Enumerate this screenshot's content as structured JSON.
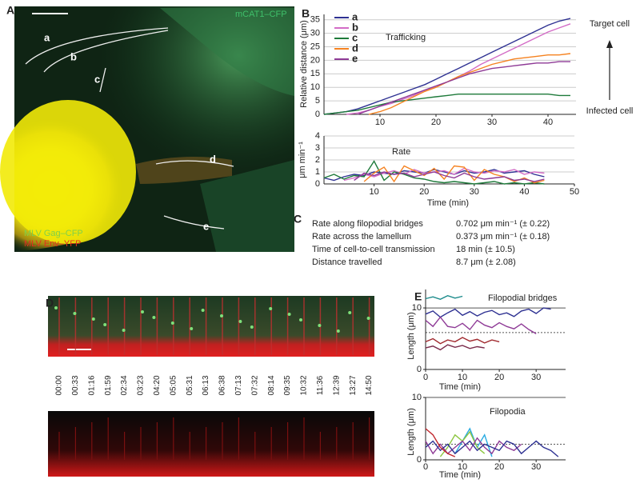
{
  "panel_letters": [
    "A",
    "B",
    "C",
    "D",
    "E"
  ],
  "panel_a": {
    "channel_label": "mCAT1–CFP",
    "track_labels": [
      "a",
      "b",
      "c",
      "d",
      "e"
    ],
    "legend": [
      "MLV Gag–CFP",
      "MLV Env–YFP"
    ]
  },
  "panel_c": {
    "rows": [
      [
        "Rate along filopodial bridges",
        "0.702 μm min⁻¹ (± 0.22)"
      ],
      [
        "Rate across the lamellum",
        "0.373 μm min⁻¹ (± 0.18)"
      ],
      [
        "Time of cell-to-cell transmission",
        "18 min (± 10.5)"
      ],
      [
        "Distance travelled",
        "8.7 μm (± 2.08)"
      ]
    ]
  },
  "panel_d": {
    "time_labels": [
      "00:00",
      "00:33",
      "01:16",
      "01:59",
      "02:34",
      "03:23",
      "04:20",
      "05:05",
      "05:31",
      "06:13",
      "06:38",
      "07:13",
      "07:32",
      "08:14",
      "09:35",
      "10:32",
      "11:36",
      "12:39",
      "13:27",
      "14:50"
    ]
  },
  "chart_data": [
    {
      "type": "line",
      "title": "Trafficking",
      "ylabel": "Relative distance (μm)",
      "annotations": [
        "Target cell",
        "Infected cell"
      ],
      "x": [
        0,
        2,
        4,
        6,
        8,
        10,
        12,
        14,
        16,
        18,
        20,
        22,
        24,
        26,
        28,
        30,
        32,
        34,
        36,
        38,
        40,
        42,
        44
      ],
      "xlim": [
        0,
        45
      ],
      "ylim": [
        0,
        37
      ],
      "xticks": [
        10,
        20,
        30,
        40
      ],
      "yticks": [
        0,
        5,
        10,
        15,
        20,
        25,
        30,
        35
      ],
      "grid": true,
      "series": [
        {
          "name": "a",
          "color": "#2e3192",
          "values": [
            0,
            0.5,
            1,
            2,
            3.5,
            5,
            6.5,
            8,
            9.5,
            11,
            13,
            15,
            17,
            19,
            21,
            23,
            25,
            27,
            29,
            31,
            33,
            34.5,
            35.5
          ]
        },
        {
          "name": "b",
          "color": "#d36cc6",
          "values": [
            null,
            null,
            0,
            0.5,
            1.5,
            3,
            4,
            5.5,
            7,
            9,
            10.5,
            12,
            14,
            16,
            18.5,
            20.5,
            22.5,
            24.5,
            26.5,
            28.5,
            30.5,
            32,
            33.5
          ]
        },
        {
          "name": "c",
          "color": "#1e7a3a",
          "values": [
            0,
            0.5,
            1,
            1.5,
            2.5,
            3.5,
            4.5,
            5,
            5.5,
            6,
            6.5,
            7,
            7.5,
            7.5,
            7.5,
            7.5,
            7.5,
            7.5,
            7.5,
            7.5,
            7.5,
            7,
            7
          ]
        },
        {
          "name": "d",
          "color": "#f58220",
          "values": [
            null,
            null,
            null,
            null,
            0,
            1,
            2.5,
            4.5,
            6.5,
            8.5,
            10,
            12,
            14,
            15.5,
            17,
            18.5,
            19.5,
            20.5,
            21,
            21.5,
            22,
            22,
            22.5
          ]
        },
        {
          "name": "e",
          "color": "#8e3a96",
          "values": [
            null,
            null,
            null,
            0,
            1.5,
            3,
            4.5,
            6,
            7.5,
            9,
            10.5,
            12,
            13.5,
            15,
            16,
            17,
            17.5,
            18,
            18.5,
            19,
            19,
            19.5,
            19.5
          ]
        }
      ]
    },
    {
      "type": "line",
      "title": "Rate",
      "ylabel": "μm min⁻¹",
      "xlabel": "Time (min)",
      "x": [
        0,
        2,
        4,
        6,
        8,
        10,
        12,
        14,
        16,
        18,
        20,
        22,
        24,
        26,
        28,
        30,
        32,
        34,
        36,
        38,
        40,
        42,
        44
      ],
      "xlim": [
        0,
        50
      ],
      "ylim": [
        0,
        4
      ],
      "xticks": [
        10,
        20,
        30,
        40,
        50
      ],
      "yticks": [
        0,
        1,
        2,
        3,
        4
      ],
      "grid": true,
      "series": [
        {
          "color": "#2e3192",
          "values": [
            0.5,
            0.3,
            0.6,
            0.8,
            0.7,
            1,
            0.9,
            0.8,
            1.1,
            1,
            0.9,
            1.2,
            1,
            0.8,
            1.1,
            0.9,
            1,
            1.2,
            0.9,
            1,
            1.1,
            0.8,
            0.6
          ]
        },
        {
          "color": "#d36cc6",
          "values": [
            null,
            null,
            0.3,
            0.5,
            0.8,
            0.6,
            0.9,
            1.1,
            0.8,
            1.2,
            0.9,
            1,
            1.1,
            0.8,
            1.3,
            1,
            0.9,
            1.1,
            1,
            1.2,
            0.8,
            1,
            0.9
          ]
        },
        {
          "color": "#1e7a3a",
          "values": [
            0.5,
            0.8,
            0.4,
            0.7,
            0.6,
            1.9,
            0.3,
            1,
            0.8,
            0.5,
            0.4,
            0.2,
            0.1,
            0.2,
            0.1,
            0,
            0.1,
            0.2,
            0,
            0.1,
            0,
            0.1,
            0
          ]
        },
        {
          "color": "#f58220",
          "values": [
            null,
            null,
            null,
            null,
            0.2,
            0.9,
            1.4,
            0.2,
            1.5,
            1.1,
            0.7,
            1.3,
            0.4,
            1.5,
            1.4,
            0.3,
            1.2,
            0.8,
            0.6,
            0.2,
            0.5,
            0.1,
            0.3
          ]
        },
        {
          "color": "#8e3a96",
          "values": [
            null,
            null,
            null,
            0.3,
            0.9,
            0.7,
            1,
            0.8,
            0.9,
            0.6,
            0.8,
            1,
            0.7,
            0.5,
            0.9,
            0.6,
            0.4,
            0.5,
            0.6,
            0.3,
            0.4,
            0.2,
            0.4
          ]
        }
      ]
    },
    {
      "type": "line",
      "title": "Filopodial bridges",
      "ylabel": "Length (μm)",
      "xlabel": "Time (min)",
      "x": [
        0,
        2,
        4,
        6,
        8,
        10,
        12,
        14,
        16,
        18,
        20,
        22,
        24,
        26,
        28,
        30,
        32,
        34,
        36
      ],
      "xlim": [
        0,
        38
      ],
      "ylim": [
        0,
        13
      ],
      "xticks": [
        0,
        10,
        20,
        30
      ],
      "yticks": [
        0,
        10
      ],
      "solid_lines": [
        10
      ],
      "dashed_lines": [
        6
      ],
      "series": [
        {
          "color": "#1a8a8a",
          "values": [
            11.5,
            11.8,
            11.4,
            12,
            11.6,
            11.9,
            null,
            null,
            null,
            null,
            null,
            null,
            null,
            null,
            null,
            null,
            null,
            null,
            null
          ]
        },
        {
          "color": "#2e3192",
          "values": [
            9,
            9.5,
            8.5,
            9.2,
            9.8,
            8.8,
            9.4,
            8.7,
            9.3,
            9.6,
            8.9,
            9.2,
            8.6,
            9.5,
            9.8,
            9.1,
            10,
            9.8,
            null
          ]
        },
        {
          "color": "#8e3a96",
          "values": [
            8,
            7,
            8.5,
            7,
            6.8,
            7.5,
            6.5,
            8,
            7.2,
            6.8,
            7.6,
            7,
            6.6,
            7.4,
            6.5,
            5.8,
            null,
            null,
            null
          ]
        },
        {
          "color": "#a0282d",
          "values": [
            4.5,
            5,
            4.2,
            4.8,
            4.5,
            5.2,
            4.6,
            4.9,
            4.3,
            4.8,
            4.5,
            null,
            null,
            null,
            null,
            null,
            null,
            null,
            null
          ]
        },
        {
          "color": "#7a2a4a",
          "values": [
            3.5,
            3.8,
            3.2,
            4,
            3.6,
            3.9,
            3.4,
            3.7,
            3.5,
            null,
            null,
            null,
            null,
            null,
            null,
            null,
            null,
            null,
            null
          ]
        }
      ]
    },
    {
      "type": "line",
      "title": "Filopodia",
      "ylabel": "Length (μm)",
      "xlabel": "Time (min)",
      "x": [
        0,
        2,
        4,
        6,
        8,
        10,
        12,
        14,
        16,
        18,
        20,
        22,
        24,
        26,
        28,
        30,
        32,
        34,
        36
      ],
      "xlim": [
        0,
        38
      ],
      "ylim": [
        0,
        10
      ],
      "xticks": [
        0,
        10,
        20,
        30
      ],
      "yticks": [
        0,
        10
      ],
      "solid_lines": [
        10
      ],
      "dashed_lines": [
        2.5
      ],
      "series": [
        {
          "color": "#29abe2",
          "values": [
            null,
            null,
            null,
            null,
            1,
            3,
            5,
            2,
            4,
            0.5,
            null,
            null,
            null,
            null,
            null,
            null,
            null,
            null,
            null
          ]
        },
        {
          "color": "#8cc63f",
          "values": [
            null,
            null,
            0.5,
            2,
            4,
            3,
            4.5,
            2,
            1,
            null,
            null,
            null,
            null,
            null,
            null,
            null,
            null,
            null,
            null
          ]
        },
        {
          "color": "#8e3a96",
          "values": [
            3,
            1,
            2.5,
            1,
            2,
            3,
            1.5,
            3.5,
            2,
            1,
            3,
            2,
            1.5,
            2.5,
            null,
            null,
            null,
            null,
            null
          ]
        },
        {
          "color": "#2e3192",
          "values": [
            2,
            3,
            1.5,
            2.5,
            1,
            2,
            3,
            1.5,
            2.5,
            2,
            1.5,
            3,
            2.5,
            1,
            2,
            3,
            2,
            1.5,
            0.5
          ]
        },
        {
          "color": "#c1272d",
          "values": [
            5,
            4,
            2,
            1,
            0.5,
            null,
            null,
            null,
            null,
            null,
            null,
            null,
            null,
            null,
            null,
            null,
            null,
            null,
            null
          ]
        }
      ]
    }
  ]
}
